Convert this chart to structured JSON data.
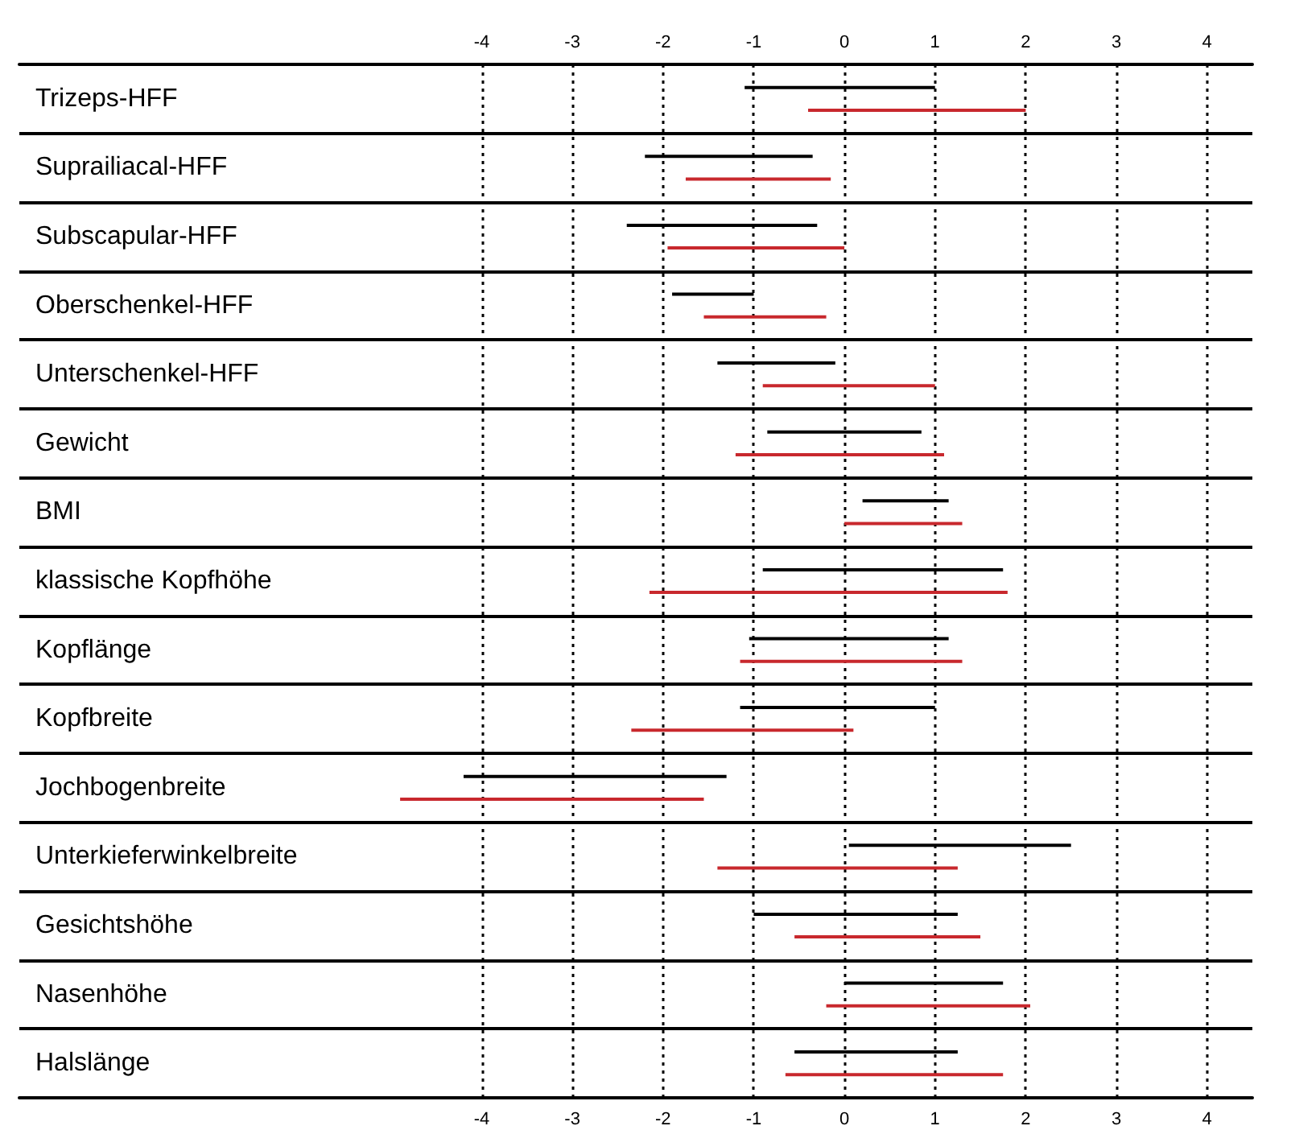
{
  "chart_data": {
    "type": "bar",
    "orientation": "horizontal",
    "categories": [
      "Trizeps-HFF",
      "Suprailiacal-HFF",
      "Subscapular-HFF",
      "Oberschenkel-HFF",
      "Unterschenkel-HFF",
      "Gewicht",
      "BMI",
      "klassische Kopfhöhe",
      "Kopflänge",
      "Kopfbreite",
      "Jochbogenbreite",
      "Unterkieferwinkelbreite",
      "Gesichtshöhe",
      "Nasenhöhe",
      "Halslänge"
    ],
    "series": [
      {
        "color": "#000000",
        "base": [
          -1.1,
          -2.2,
          -2.4,
          -1.9,
          -1.4,
          -0.85,
          0.2,
          -0.9,
          -1.05,
          -1.15,
          -4.2,
          0.05,
          -1.0,
          0,
          -0.55
        ],
        "values": [
          2.1,
          1.85,
          2.1,
          0.9,
          1.3,
          1.7,
          0.95,
          2.65,
          2.2,
          2.15,
          2.9,
          2.45,
          2.25,
          1.75,
          1.8
        ]
      },
      {
        "color": "#c8282d",
        "base": [
          -0.4,
          -1.75,
          -1.95,
          -1.55,
          -0.9,
          -1.2,
          0,
          -2.15,
          -1.15,
          -2.35,
          -4.9,
          -1.4,
          -0.55,
          -0.2,
          -0.65
        ],
        "values": [
          2.4,
          1.6,
          1.95,
          1.35,
          1.9,
          2.3,
          1.3,
          3.95,
          2.45,
          2.45,
          3.35,
          2.65,
          2.05,
          2.25,
          2.4
        ]
      }
    ],
    "xlim": [
      -9.1,
      4.5
    ],
    "xticks": [
      -4,
      -3,
      -2,
      -1,
      0,
      1,
      2,
      3,
      4
    ],
    "x2lim": [
      -9.1,
      4.5
    ],
    "x2ticks": [
      -4,
      -3,
      -2,
      -1,
      0,
      1,
      2,
      3,
      4
    ],
    "grid": "x"
  }
}
